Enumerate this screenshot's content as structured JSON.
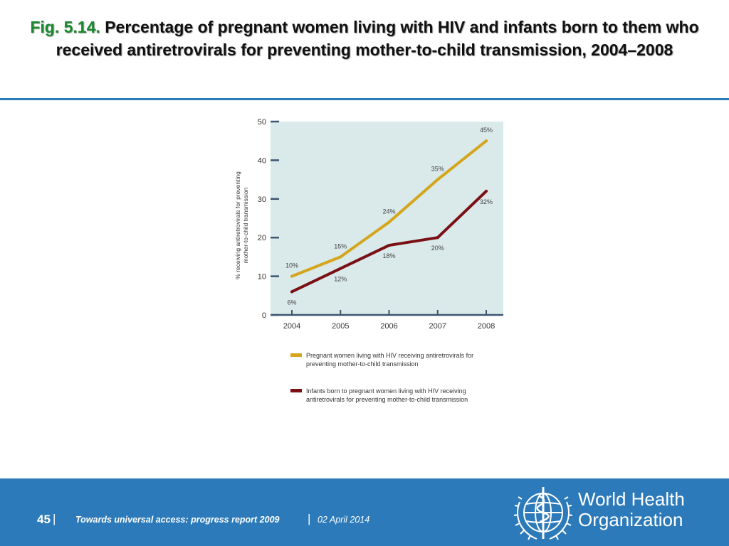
{
  "slide": {
    "fig_label": "Fig. 5.14.",
    "title": "Percentage of pregnant women living with HIV and infants born to them who received antiretrovirals for preventing mother-to-child transmission, 2004–2008"
  },
  "footer": {
    "page_number": "45",
    "report": "Towards universal access: progress report 2009",
    "date": "02 April 2014",
    "org_line1": "World Health",
    "org_line2": "Organization"
  },
  "colors": {
    "accent": "#2a7db9",
    "plot_background": "#dae9ea",
    "series_pregnant": "#d4a61c",
    "series_infants": "#7a1014"
  },
  "chart_data": {
    "type": "line",
    "title": "",
    "xlabel": "",
    "ylabel": "% receiving antiretrovirals for preventing mother-to-child transmission",
    "x": [
      "2004",
      "2005",
      "2006",
      "2007",
      "2008"
    ],
    "ylim": [
      0,
      50
    ],
    "yticks": [
      0,
      10,
      20,
      30,
      40,
      50
    ],
    "grid": false,
    "legend_position": "bottom",
    "series": [
      {
        "name": "Pregnant women living with HIV receiving antiretrovirals for preventing mother-to-child transmission",
        "name_lines": [
          "Pregnant women living with HIV receiving antiretrovirals for",
          "preventing mother-to-child transmission"
        ],
        "values": [
          10,
          15,
          24,
          35,
          45
        ],
        "labels": [
          "10%",
          "15%",
          "24%",
          "35%",
          "45%"
        ]
      },
      {
        "name": "Infants born to pregnant women living with HIV receiving antiretrovirals for preventing mother-to-child transmission",
        "name_lines": [
          "Infants born to pregnant women living with HIV receiving",
          "antiretrovirals for preventing mother-to-child transmission"
        ],
        "values": [
          6,
          12,
          18,
          20,
          32
        ],
        "labels": [
          "6%",
          "12%",
          "18%",
          "20%",
          "32%"
        ]
      }
    ]
  }
}
